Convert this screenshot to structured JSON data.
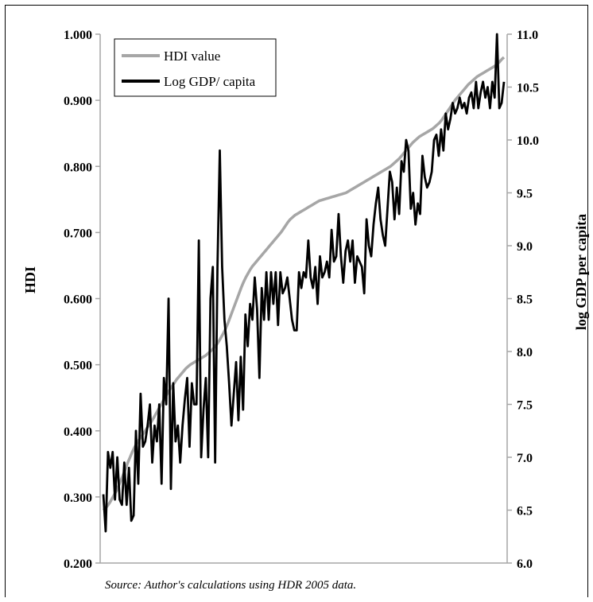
{
  "chart_data": {
    "type": "line",
    "left_axis": {
      "label": "HDI",
      "ylim": [
        0.2,
        1.0
      ],
      "ticks": [
        "0.200",
        "0.300",
        "0.400",
        "0.500",
        "0.600",
        "0.700",
        "0.800",
        "0.900",
        "1.000"
      ]
    },
    "right_axis": {
      "label": "log GDP per capita",
      "ylim": [
        6.0,
        11.0
      ],
      "ticks": [
        "6.0",
        "6.5",
        "7.0",
        "7.5",
        "8.0",
        "8.5",
        "9.0",
        "9.5",
        "10.0",
        "10.5",
        "11.0"
      ]
    },
    "legend": {
      "placement": "top-left",
      "entries": [
        "HDI value",
        "Log GDP/ capita"
      ]
    },
    "grid": false,
    "series": [
      {
        "name": "HDI value",
        "axis": "left",
        "color": "#a6a6a6",
        "values": [
          0.28,
          0.283,
          0.287,
          0.292,
          0.298,
          0.304,
          0.31,
          0.318,
          0.326,
          0.334,
          0.343,
          0.352,
          0.36,
          0.368,
          0.375,
          0.381,
          0.386,
          0.391,
          0.396,
          0.401,
          0.406,
          0.411,
          0.416,
          0.422,
          0.428,
          0.434,
          0.44,
          0.446,
          0.452,
          0.458,
          0.463,
          0.468,
          0.473,
          0.478,
          0.482,
          0.486,
          0.49,
          0.494,
          0.497,
          0.5,
          0.502,
          0.504,
          0.506,
          0.508,
          0.51,
          0.512,
          0.514,
          0.517,
          0.52,
          0.523,
          0.527,
          0.531,
          0.536,
          0.542,
          0.548,
          0.555,
          0.563,
          0.572,
          0.581,
          0.59,
          0.599,
          0.608,
          0.617,
          0.625,
          0.632,
          0.638,
          0.644,
          0.649,
          0.653,
          0.657,
          0.661,
          0.665,
          0.669,
          0.673,
          0.677,
          0.681,
          0.685,
          0.689,
          0.693,
          0.697,
          0.701,
          0.706,
          0.711,
          0.716,
          0.72,
          0.723,
          0.726,
          0.728,
          0.73,
          0.732,
          0.734,
          0.736,
          0.738,
          0.74,
          0.742,
          0.744,
          0.746,
          0.748,
          0.749,
          0.75,
          0.751,
          0.752,
          0.753,
          0.754,
          0.755,
          0.756,
          0.757,
          0.758,
          0.759,
          0.76,
          0.762,
          0.764,
          0.766,
          0.768,
          0.77,
          0.772,
          0.774,
          0.776,
          0.778,
          0.78,
          0.782,
          0.784,
          0.786,
          0.788,
          0.79,
          0.792,
          0.794,
          0.796,
          0.798,
          0.8,
          0.803,
          0.806,
          0.809,
          0.812,
          0.816,
          0.82,
          0.824,
          0.828,
          0.832,
          0.836,
          0.839,
          0.842,
          0.845,
          0.847,
          0.849,
          0.851,
          0.853,
          0.855,
          0.857,
          0.86,
          0.863,
          0.866,
          0.87,
          0.875,
          0.88,
          0.885,
          0.89,
          0.895,
          0.9,
          0.904,
          0.908,
          0.912,
          0.916,
          0.92,
          0.924,
          0.927,
          0.93,
          0.933,
          0.936,
          0.938,
          0.94,
          0.942,
          0.944,
          0.946,
          0.948,
          0.95,
          0.952,
          0.955,
          0.958,
          0.962,
          0.965
        ]
      },
      {
        "name": "Log GDP/ capita",
        "axis": "right",
        "color": "#000000",
        "values": [
          6.65,
          6.3,
          7.05,
          6.9,
          7.05,
          6.6,
          7.0,
          6.6,
          6.55,
          6.95,
          6.55,
          6.9,
          6.4,
          6.45,
          7.25,
          6.75,
          7.6,
          7.1,
          7.15,
          7.3,
          7.5,
          6.95,
          7.3,
          7.15,
          7.5,
          6.75,
          7.75,
          7.5,
          8.5,
          6.7,
          7.7,
          7.15,
          7.3,
          6.95,
          7.3,
          7.55,
          7.75,
          7.1,
          7.7,
          7.5,
          7.5,
          9.05,
          7.0,
          7.45,
          7.75,
          7.0,
          8.5,
          8.8,
          6.95,
          8.8,
          9.9,
          8.8,
          8.3,
          8.05,
          7.7,
          7.3,
          7.6,
          7.9,
          7.35,
          7.95,
          7.45,
          8.35,
          8.05,
          8.45,
          8.3,
          8.7,
          8.4,
          7.75,
          8.6,
          8.3,
          8.75,
          8.3,
          8.75,
          8.45,
          8.75,
          8.25,
          8.75,
          8.55,
          8.6,
          8.7,
          8.5,
          8.3,
          8.2,
          8.2,
          8.75,
          8.6,
          8.75,
          8.7,
          9.05,
          8.7,
          8.6,
          8.8,
          8.45,
          8.9,
          8.7,
          8.75,
          8.85,
          8.7,
          9.15,
          8.85,
          8.9,
          9.3,
          8.9,
          8.65,
          8.95,
          9.05,
          8.85,
          9.05,
          8.65,
          8.9,
          8.85,
          8.8,
          8.55,
          9.25,
          9.0,
          8.9,
          9.2,
          9.4,
          9.55,
          9.25,
          9.1,
          9.0,
          9.35,
          9.7,
          9.6,
          9.25,
          9.55,
          9.3,
          9.8,
          9.7,
          10.0,
          9.9,
          9.35,
          9.5,
          9.2,
          9.4,
          9.3,
          9.85,
          9.65,
          9.55,
          9.6,
          9.7,
          10.0,
          10.05,
          9.85,
          10.1,
          9.9,
          10.25,
          10.1,
          10.2,
          10.35,
          10.25,
          10.3,
          10.4,
          10.3,
          10.35,
          10.25,
          10.4,
          10.45,
          10.3,
          10.55,
          10.3,
          10.45,
          10.55,
          10.4,
          10.5,
          10.3,
          10.55,
          10.4,
          11.0,
          10.3,
          10.35,
          10.55
        ]
      }
    ]
  },
  "source_note": "Source: Author's calculations using HDR 2005 data."
}
